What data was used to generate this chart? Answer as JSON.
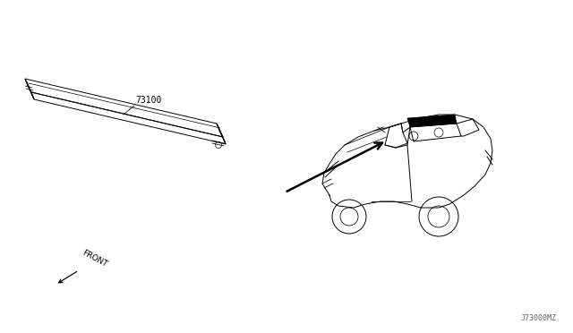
{
  "bg_color": "#ffffff",
  "line_color": "#000000",
  "part_number": "73100",
  "diagram_code": "J73000MZ",
  "front_label": "FRONT",
  "lw": 0.7
}
